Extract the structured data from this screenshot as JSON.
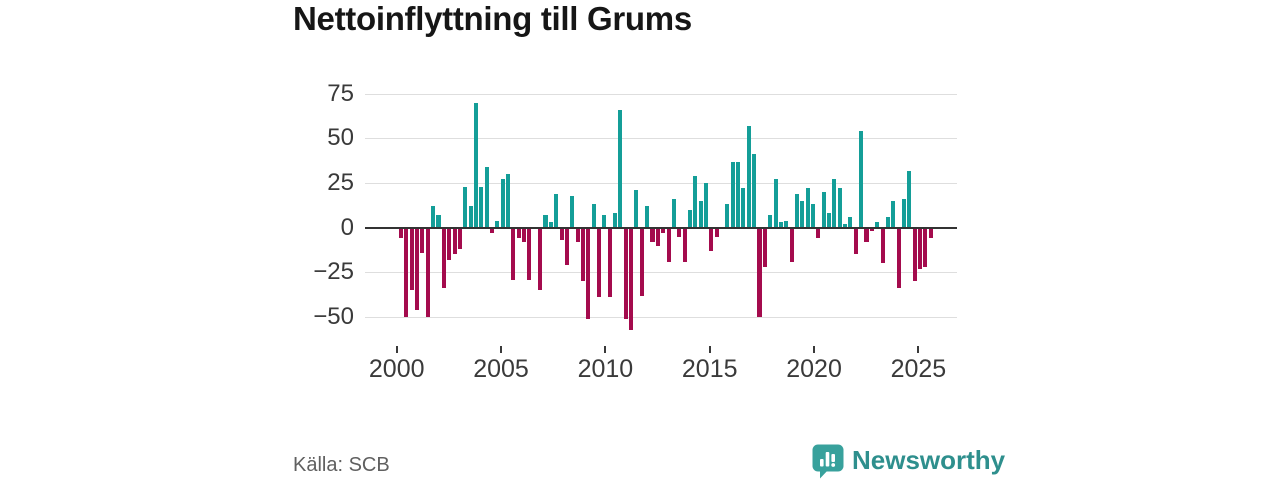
{
  "title": "Nettoinflyttning till Grums",
  "source": "Källa: SCB",
  "brand": {
    "name": "Newsworthy",
    "icon": "newsworthy-speech-bubble-bar-chart-icon",
    "text_color": "#2e8f8d",
    "icon_color": "#38a19c"
  },
  "colors": {
    "positive_bar": "#149e98",
    "negative_bar": "#a40b4d",
    "gridline": "#dedede",
    "zero_axis": "#333333",
    "tick_text": "#3a3a3a",
    "title_text": "#161616",
    "source_text": "#606060"
  },
  "chart_data": {
    "type": "bar",
    "title": "Nettoinflyttning till Grums",
    "xlabel": "",
    "ylabel": "",
    "unit": "net migration per quarter (persons)",
    "frequency": "quarterly",
    "start_period": "2000-Q2",
    "end_period": "2025-Q1",
    "grid": true,
    "ylim": [
      -62,
      80
    ],
    "y_ticks": [
      75,
      50,
      25,
      0,
      -25,
      -50
    ],
    "y_tick_labels": [
      "75",
      "50",
      "25",
      "0",
      "−25",
      "−50"
    ],
    "x_tick_labels": [
      "2000",
      "2005",
      "2010",
      "2015",
      "2020",
      "2025"
    ],
    "values": [
      -6,
      -50,
      -35,
      -46,
      -14,
      -50,
      12,
      7,
      -34,
      -18,
      -15,
      -12,
      23,
      12,
      70,
      23,
      34,
      -3,
      4,
      27,
      30,
      -29,
      -6,
      -8,
      -29,
      0,
      -35,
      7,
      3,
      19,
      -7,
      -21,
      18,
      -8,
      -30,
      -51,
      13,
      -39,
      7,
      -39,
      8,
      66,
      -51,
      -57,
      21,
      -38,
      12,
      -8,
      -10,
      -3,
      -19,
      16,
      -5,
      -19,
      10,
      29,
      15,
      25,
      -13,
      -5,
      0,
      13,
      37,
      37,
      22,
      57,
      41,
      -50,
      -22,
      7,
      27,
      3,
      4,
      -19,
      19,
      15,
      22,
      13,
      -6,
      20,
      8,
      27,
      22,
      2,
      6,
      -15,
      54,
      -8,
      -2,
      3,
      -20,
      6,
      15,
      -34,
      16,
      32,
      -30,
      -23,
      -22,
      -6
    ]
  }
}
